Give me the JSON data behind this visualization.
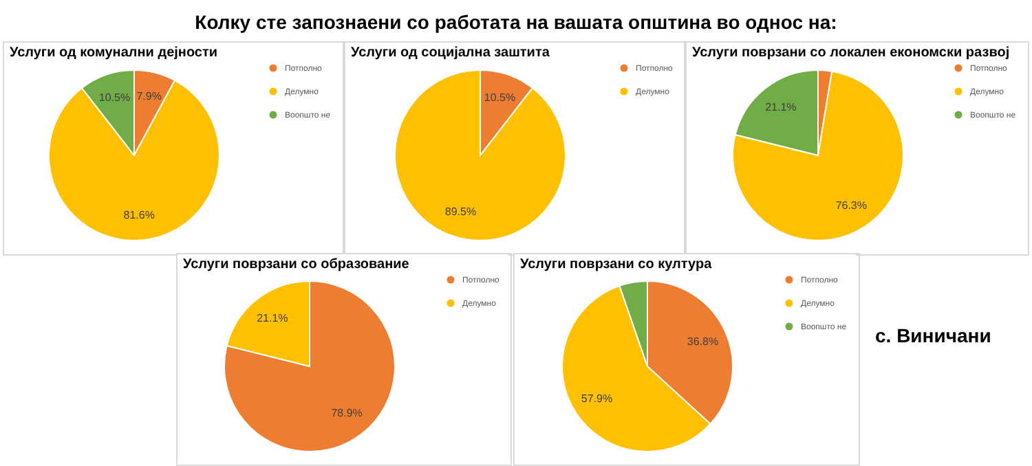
{
  "chart_data": [
    {
      "type": "other",
      "title": "Колку сте запознаени со работата на вашата општина во однос на:",
      "annotations": [
        "с. Виничани"
      ]
    },
    {
      "type": "pie",
      "title": "Услуги од комунални дејности",
      "categories": [
        "Потполно",
        "Делумно",
        "Воопшто не"
      ],
      "values": [
        7.9,
        81.6,
        10.5
      ],
      "value_labels": [
        "7.9%",
        "81.6%",
        "10.5%"
      ],
      "colors": [
        "#ed7d31",
        "#ffc000",
        "#70ad47"
      ],
      "legend": "right"
    },
    {
      "type": "pie",
      "title": "Услуги од социјална заштита",
      "categories": [
        "Потполно",
        "Делумно"
      ],
      "values": [
        10.5,
        89.5
      ],
      "value_labels": [
        "10.5%",
        "89.5%"
      ],
      "colors": [
        "#ed7d31",
        "#ffc000"
      ],
      "legend": "top right"
    },
    {
      "type": "pie",
      "title": "Услуги поврзани со локален економски развој",
      "categories": [
        "Потполно",
        "Делумно",
        "Воопшто не"
      ],
      "values": [
        2.6,
        76.3,
        21.1
      ],
      "value_labels": [
        null,
        "76.3%",
        "21.1%"
      ],
      "colors": [
        "#ed7d31",
        "#ffc000",
        "#70ad47"
      ],
      "legend": "top right"
    },
    {
      "type": "pie",
      "title": "Услуги поврзани со образование",
      "categories": [
        "Потполно",
        "Делумно"
      ],
      "values": [
        78.9,
        21.1
      ],
      "value_labels": [
        "78.9%",
        "21.1%"
      ],
      "colors": [
        "#ed7d31",
        "#ffc000"
      ],
      "legend": "top right"
    },
    {
      "type": "pie",
      "title": "Услуги поврзани со култура",
      "categories": [
        "Потполно",
        "Делумно",
        "Воопшто не"
      ],
      "values": [
        36.8,
        57.9,
        5.3
      ],
      "value_labels": [
        "36.8%",
        "57.9%",
        null
      ],
      "colors": [
        "#ed7d31",
        "#ffc000",
        "#70ad47"
      ],
      "legend": "top right"
    }
  ]
}
